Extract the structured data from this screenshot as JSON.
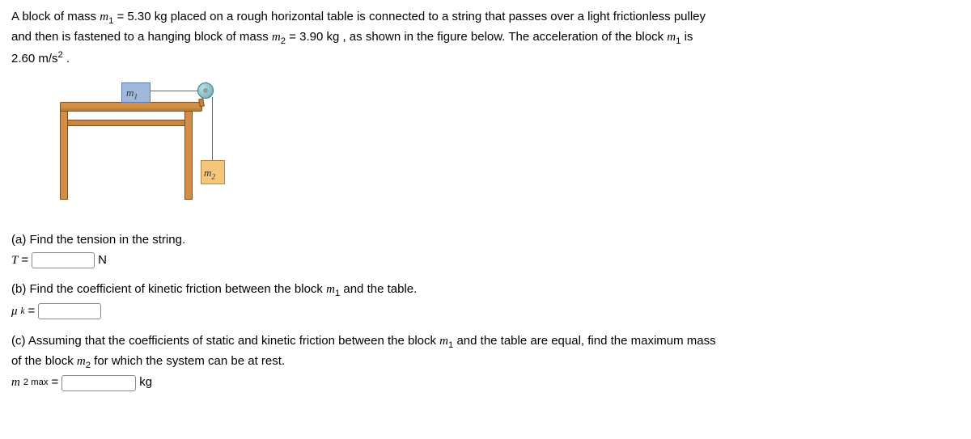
{
  "problem": {
    "intro_1": "A block of mass ",
    "m1_sym": "m",
    "m1_sub": "1",
    "eq1": " = 5.30 kg  placed on a rough horizontal table is connected to a string that passes over a light frictionless pulley",
    "intro_2": "and then is fastened to a hanging block of mass ",
    "m2_sym": "m",
    "m2_sub": "2",
    "eq2": " = 3.90 kg , as shown in the figure below. The acceleration of the block ",
    "m1_again": "m",
    "m1_again_sub": "1",
    "is": "  is",
    "accel_line_val": "2.60 m/s",
    "accel_sup": "2",
    "accel_dot": " ."
  },
  "figure": {
    "label_m1": "m",
    "label_m1_sub": "1",
    "label_m2": "m",
    "label_m2_sub": "2",
    "colors": {
      "block1": "#9fb8dc",
      "block2": "#f2c77b",
      "table": "#d28f45",
      "pulley": "#5fa8b8"
    }
  },
  "part_a": {
    "prompt": "(a) Find the tension in the string.",
    "lhs_sym": "T",
    "equals": " = ",
    "unit": "N"
  },
  "part_b": {
    "prompt_1": "(b) Find the coefficient of kinetic friction between the block ",
    "m1_sym": "m",
    "m1_sub": "1",
    "prompt_2": "  and the table.",
    "lhs_sym": "μ",
    "lhs_sub": "k",
    "equals": " = "
  },
  "part_c": {
    "prompt_1": "(c) Assuming that the coefficients of static and kinetic friction between the block ",
    "m1_sym": "m",
    "m1_sub": "1",
    "prompt_2": "  and the table are equal, find the maximum mass",
    "line2_1": "of the block ",
    "m2_sym": "m",
    "m2_sub": "2",
    "line2_2": "  for which the system can be at rest.",
    "lhs_sym": "m",
    "lhs_sub": "2 max",
    "equals": " = ",
    "unit": "kg"
  }
}
